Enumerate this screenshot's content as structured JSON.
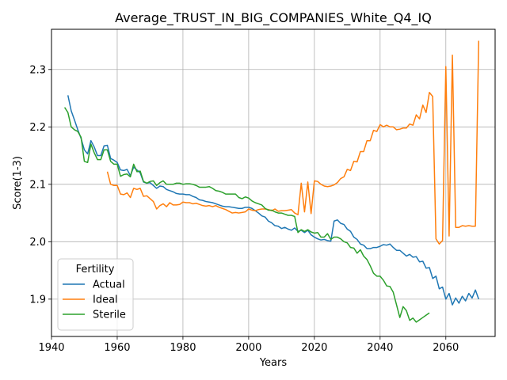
{
  "chart_data": {
    "type": "line",
    "title": "Average_TRUST_IN_BIG_COMPANIES_White_Q4_IQ",
    "xlabel": "Years",
    "ylabel": "Score(1-3)",
    "xlim": [
      1940,
      2075
    ],
    "ylim": [
      1.835,
      2.37
    ],
    "xticks": [
      1940,
      1960,
      1980,
      2000,
      2020,
      2040,
      2060
    ],
    "yticks": [
      1.9,
      2.0,
      2.1,
      2.2,
      2.3
    ],
    "ytick_labels": [
      "1.9",
      "2.0",
      "2.1",
      "2.2",
      "2.3"
    ],
    "grid": true,
    "legend": {
      "title": "Fertility",
      "placement": "lower-left"
    },
    "series": [
      {
        "name": "Actual",
        "color": "#1f77b4",
        "x": [
          1945,
          1946,
          1947,
          1948,
          1949,
          1950,
          1951,
          1952,
          1953,
          1954,
          1955,
          1956,
          1957,
          1958,
          1959,
          1960,
          1961,
          1962,
          1963,
          1964,
          1965,
          1966,
          1967,
          1968,
          1969,
          1970,
          1971,
          1972,
          1973,
          1974,
          1975,
          1976,
          1977,
          1978,
          1979,
          1980,
          1981,
          1982,
          1983,
          1984,
          1985,
          1986,
          1987,
          1988,
          1989,
          1990,
          1991,
          1992,
          1993,
          1994,
          1995,
          1996,
          1997,
          1998,
          1999,
          2000,
          2001,
          2002,
          2003,
          2004,
          2005,
          2006,
          2007,
          2008,
          2009,
          2010,
          2011,
          2012,
          2013,
          2014,
          2015,
          2016,
          2017,
          2018,
          2019,
          2020,
          2021,
          2022,
          2023,
          2024,
          2025,
          2026,
          2027,
          2028,
          2029,
          2030,
          2031,
          2032,
          2033,
          2034,
          2035,
          2036,
          2037,
          2038,
          2039,
          2040,
          2041,
          2042,
          2043,
          2044,
          2045,
          2046,
          2047,
          2048,
          2049,
          2050,
          2051,
          2052,
          2053,
          2054,
          2055,
          2056,
          2057,
          2058,
          2059,
          2060,
          2061,
          2062,
          2063,
          2064,
          2065,
          2066,
          2067,
          2068,
          2069,
          2070
        ],
        "y": [
          2.255,
          2.228,
          2.212,
          2.195,
          2.18,
          2.16,
          2.153,
          2.176,
          2.165,
          2.15,
          2.15,
          2.167,
          2.168,
          2.145,
          2.142,
          2.138,
          2.125,
          2.124,
          2.126,
          2.115,
          2.13,
          2.125,
          2.12,
          2.104,
          2.102,
          2.103,
          2.098,
          2.093,
          2.097,
          2.096,
          2.091,
          2.089,
          2.087,
          2.084,
          2.083,
          2.083,
          2.082,
          2.082,
          2.079,
          2.077,
          2.073,
          2.072,
          2.07,
          2.069,
          2.068,
          2.066,
          2.064,
          2.062,
          2.061,
          2.061,
          2.06,
          2.059,
          2.058,
          2.058,
          2.06,
          2.06,
          2.058,
          2.054,
          2.05,
          2.045,
          2.043,
          2.036,
          2.033,
          2.028,
          2.027,
          2.023,
          2.025,
          2.022,
          2.02,
          2.024,
          2.018,
          2.02,
          2.016,
          2.02,
          2.012,
          2.008,
          2.005,
          2.003,
          2.004,
          2.002,
          2.001,
          2.036,
          2.038,
          2.032,
          2.03,
          2.022,
          2.018,
          2.008,
          2.004,
          1.996,
          1.994,
          1.988,
          1.988,
          1.99,
          1.99,
          1.992,
          1.995,
          1.994,
          1.996,
          1.99,
          1.985,
          1.985,
          1.98,
          1.975,
          1.978,
          1.973,
          1.974,
          1.965,
          1.966,
          1.954,
          1.955,
          1.936,
          1.94,
          1.918,
          1.921,
          1.9,
          1.91,
          1.89,
          1.902,
          1.893,
          1.905,
          1.897,
          1.91,
          1.902,
          1.916,
          1.9
        ]
      },
      {
        "name": "Ideal",
        "color": "#ff7f0e",
        "x": [
          1957,
          1958,
          1959,
          1960,
          1961,
          1962,
          1963,
          1964,
          1965,
          1966,
          1967,
          1968,
          1969,
          1970,
          1971,
          1972,
          1973,
          1974,
          1975,
          1976,
          1977,
          1978,
          1979,
          1980,
          1981,
          1982,
          1983,
          1984,
          1985,
          1986,
          1987,
          1988,
          1989,
          1990,
          1991,
          1992,
          1993,
          1994,
          1995,
          1996,
          1997,
          1998,
          1999,
          2000,
          2001,
          2002,
          2003,
          2004,
          2005,
          2006,
          2007,
          2008,
          2009,
          2010,
          2011,
          2012,
          2013,
          2014,
          2015,
          2016,
          2017,
          2018,
          2019,
          2020,
          2021,
          2022,
          2023,
          2024,
          2025,
          2026,
          2027,
          2028,
          2029,
          2030,
          2031,
          2032,
          2033,
          2034,
          2035,
          2036,
          2037,
          2038,
          2039,
          2040,
          2041,
          2042,
          2043,
          2044,
          2045,
          2046,
          2047,
          2048,
          2049,
          2050,
          2051,
          2052,
          2053,
          2054,
          2055,
          2056,
          2057,
          2058,
          2059,
          2060,
          2061,
          2062,
          2063,
          2064,
          2065,
          2066,
          2067,
          2068,
          2069,
          2070
        ],
        "y": [
          2.122,
          2.1,
          2.098,
          2.098,
          2.083,
          2.082,
          2.085,
          2.077,
          2.093,
          2.091,
          2.093,
          2.079,
          2.08,
          2.075,
          2.07,
          2.057,
          2.063,
          2.066,
          2.061,
          2.068,
          2.064,
          2.064,
          2.065,
          2.069,
          2.068,
          2.068,
          2.066,
          2.067,
          2.065,
          2.063,
          2.062,
          2.063,
          2.061,
          2.063,
          2.06,
          2.058,
          2.056,
          2.053,
          2.05,
          2.051,
          2.05,
          2.051,
          2.052,
          2.057,
          2.055,
          2.054,
          2.056,
          2.057,
          2.057,
          2.056,
          2.054,
          2.057,
          2.053,
          2.054,
          2.054,
          2.055,
          2.056,
          2.05,
          2.047,
          2.102,
          2.052,
          2.104,
          2.049,
          2.106,
          2.105,
          2.1,
          2.097,
          2.096,
          2.097,
          2.099,
          2.103,
          2.11,
          2.113,
          2.126,
          2.124,
          2.14,
          2.139,
          2.157,
          2.157,
          2.176,
          2.176,
          2.194,
          2.192,
          2.204,
          2.2,
          2.203,
          2.2,
          2.2,
          2.195,
          2.196,
          2.198,
          2.198,
          2.205,
          2.203,
          2.221,
          2.214,
          2.238,
          2.225,
          2.26,
          2.253,
          2.005,
          1.996,
          2.002,
          2.305,
          2.01,
          2.325,
          2.025,
          2.025,
          2.028,
          2.027,
          2.028,
          2.027,
          2.027,
          2.35
        ]
      },
      {
        "name": "Sterile",
        "color": "#2ca02c",
        "x": [
          1944,
          1945,
          1946,
          1947,
          1948,
          1949,
          1950,
          1951,
          1952,
          1953,
          1954,
          1955,
          1956,
          1957,
          1958,
          1959,
          1960,
          1961,
          1962,
          1963,
          1964,
          1965,
          1966,
          1967,
          1968,
          1969,
          1970,
          1971,
          1972,
          1973,
          1974,
          1975,
          1976,
          1977,
          1978,
          1979,
          1980,
          1981,
          1982,
          1983,
          1984,
          1985,
          1986,
          1987,
          1988,
          1989,
          1990,
          1991,
          1992,
          1993,
          1994,
          1995,
          1996,
          1997,
          1998,
          1999,
          2000,
          2001,
          2002,
          2003,
          2004,
          2005,
          2006,
          2007,
          2008,
          2009,
          2010,
          2011,
          2012,
          2013,
          2014,
          2015,
          2016,
          2017,
          2018,
          2019,
          2020,
          2021,
          2022,
          2023,
          2024,
          2025,
          2026,
          2027,
          2028,
          2029,
          2030,
          2031,
          2032,
          2033,
          2034,
          2035,
          2036,
          2037,
          2038,
          2039,
          2040,
          2041,
          2042,
          2043,
          2044,
          2045,
          2046,
          2047,
          2048,
          2049,
          2050,
          2051,
          2052,
          2053,
          2054,
          2055
        ],
        "y": [
          2.234,
          2.225,
          2.2,
          2.195,
          2.192,
          2.182,
          2.14,
          2.138,
          2.17,
          2.155,
          2.143,
          2.143,
          2.16,
          2.16,
          2.14,
          2.135,
          2.135,
          2.114,
          2.117,
          2.118,
          2.113,
          2.135,
          2.122,
          2.123,
          2.105,
          2.102,
          2.105,
          2.106,
          2.098,
          2.103,
          2.106,
          2.1,
          2.1,
          2.1,
          2.102,
          2.102,
          2.1,
          2.101,
          2.101,
          2.1,
          2.098,
          2.095,
          2.095,
          2.095,
          2.096,
          2.093,
          2.089,
          2.088,
          2.086,
          2.083,
          2.083,
          2.083,
          2.083,
          2.077,
          2.075,
          2.078,
          2.076,
          2.071,
          2.068,
          2.066,
          2.064,
          2.058,
          2.055,
          2.055,
          2.052,
          2.05,
          2.05,
          2.048,
          2.046,
          2.046,
          2.044,
          2.016,
          2.021,
          2.018,
          2.021,
          2.017,
          2.015,
          2.016,
          2.008,
          2.008,
          2.014,
          2.004,
          2.008,
          2.008,
          2.005,
          2.0,
          1.998,
          1.99,
          1.989,
          1.98,
          1.986,
          1.975,
          1.969,
          1.958,
          1.945,
          1.94,
          1.94,
          1.933,
          1.923,
          1.922,
          1.912,
          1.89,
          1.868,
          1.887,
          1.88,
          1.863,
          1.867,
          1.86,
          1.864,
          1.868,
          1.872,
          1.876
        ]
      }
    ]
  }
}
